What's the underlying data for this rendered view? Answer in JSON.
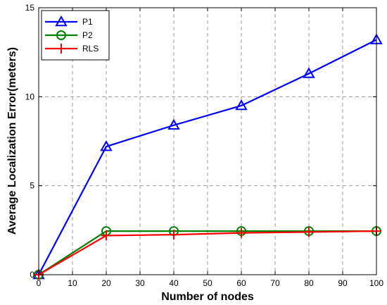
{
  "chart_data": {
    "type": "line",
    "title": "",
    "xlabel": "Number of nodes",
    "ylabel": "Average Localization Error(meters)",
    "xlim": [
      0,
      100
    ],
    "ylim": [
      0,
      15
    ],
    "x_ticks": [
      "0",
      "10",
      "20",
      "30",
      "40",
      "50",
      "60",
      "70",
      "80",
      "90",
      "100"
    ],
    "y_ticks": [
      "0",
      "5",
      "10",
      "15"
    ],
    "grid": true,
    "legend_position": "top-left",
    "x": [
      0,
      20,
      40,
      60,
      80,
      100
    ],
    "series": [
      {
        "name": "P1",
        "color": "#0000ff",
        "marker": "triangle",
        "values": [
          0.0,
          7.2,
          8.4,
          9.5,
          11.3,
          13.2
        ]
      },
      {
        "name": "P2",
        "color": "#008000",
        "marker": "circle",
        "values": [
          0.0,
          2.45,
          2.45,
          2.45,
          2.45,
          2.45
        ]
      },
      {
        "name": "RLS",
        "color": "#ff0000",
        "marker": "plus",
        "values": [
          0.0,
          2.2,
          2.25,
          2.35,
          2.4,
          2.45
        ]
      }
    ]
  }
}
